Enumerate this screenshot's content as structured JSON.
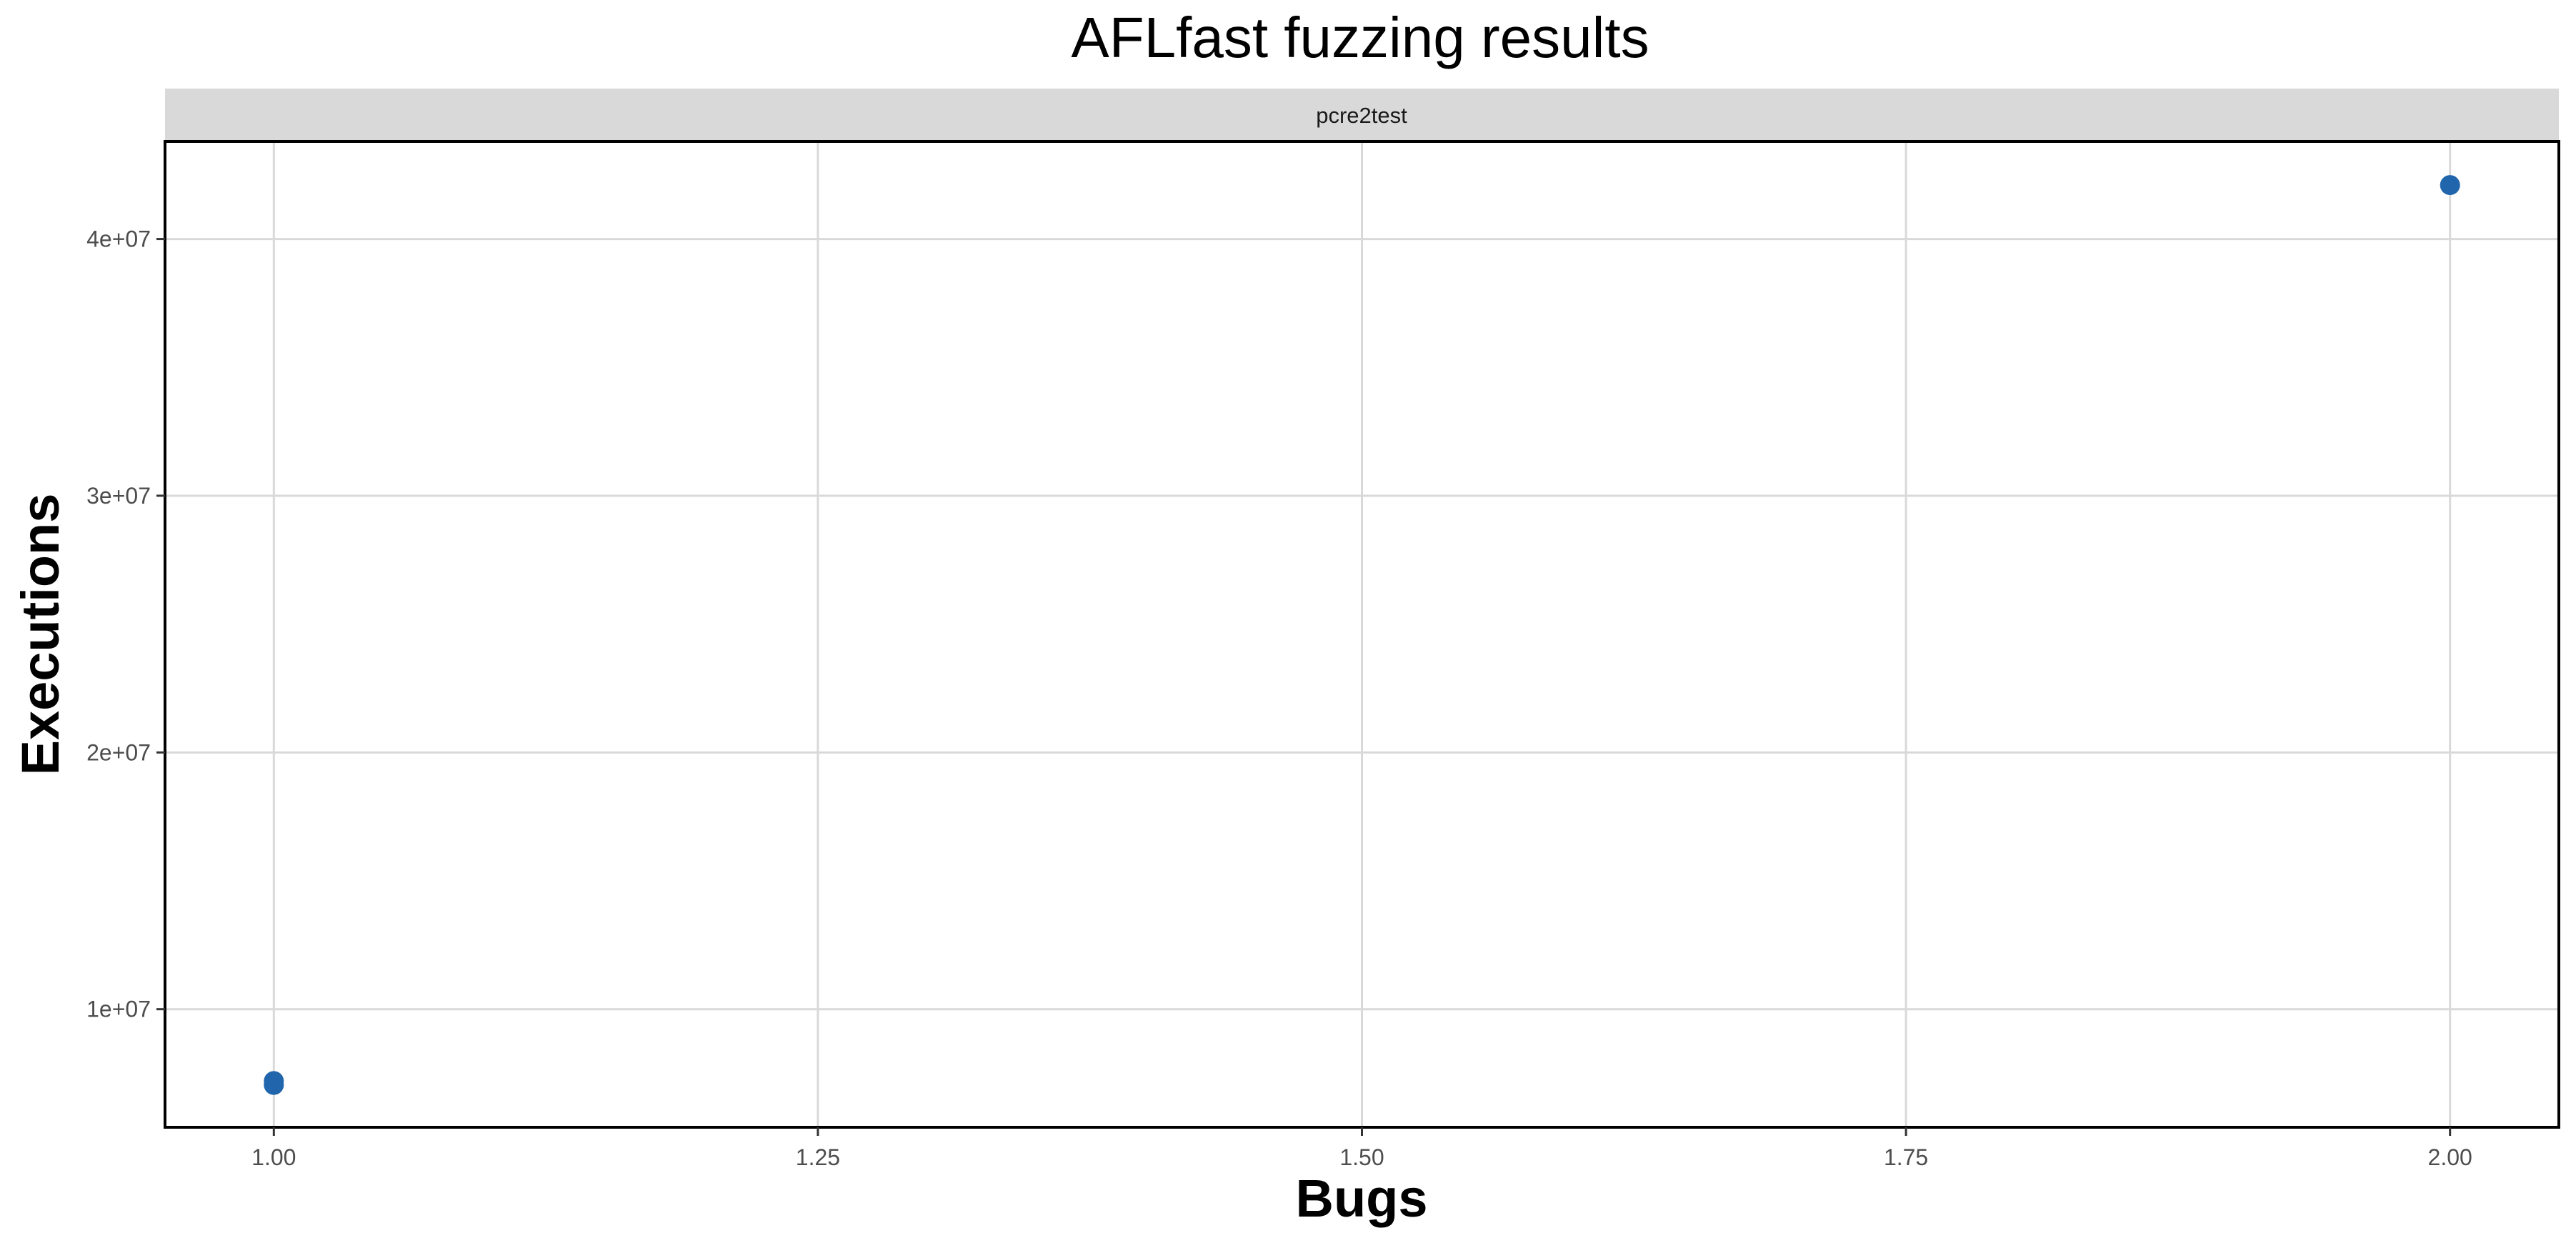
{
  "chart_data": {
    "type": "scatter",
    "title": "AFLfast fuzzing results",
    "facet": "pcre2test",
    "xlabel": "Bugs",
    "ylabel": "Executions",
    "xlim": [
      0.95,
      2.05
    ],
    "ylim": [
      5400000,
      43800000
    ],
    "x_ticks": [
      1.0,
      1.25,
      1.5,
      1.75,
      2.0
    ],
    "x_tick_labels": [
      "1.00",
      "1.25",
      "1.50",
      "1.75",
      "2.00"
    ],
    "y_ticks": [
      10000000,
      20000000,
      30000000,
      40000000
    ],
    "y_tick_labels": [
      "1e+07",
      "2e+07",
      "3e+07",
      "4e+07"
    ],
    "grid": true,
    "legend": "none",
    "series": [
      {
        "color": "#2166ac",
        "points": [
          {
            "x": 1.0,
            "y": 7050000
          },
          {
            "x": 1.0,
            "y": 7200000
          },
          {
            "x": 2.0,
            "y": 42100000
          }
        ]
      }
    ]
  }
}
